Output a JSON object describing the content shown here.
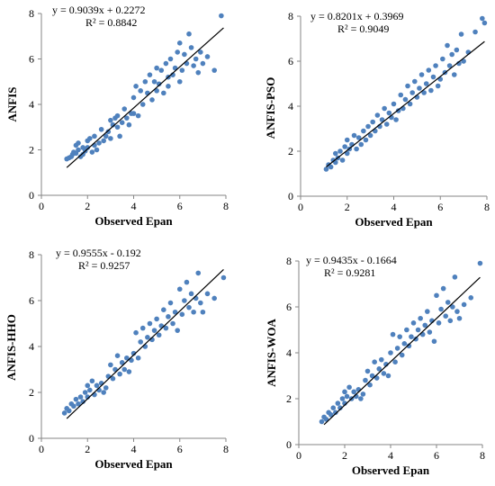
{
  "chart_data": [
    {
      "type": "scatter",
      "xlabel": "Observed Epan",
      "ylabel": "ANFIS",
      "xlim": [
        0,
        8
      ],
      "ylim": [
        0,
        8
      ],
      "xticks": [
        "0",
        "2",
        "4",
        "6",
        "8"
      ],
      "yticks": [
        "0",
        "2",
        "4",
        "6",
        "8"
      ],
      "equation": "y = 0.9039x + 0.2272",
      "r2": "R² = 0.8842",
      "trendline": {
        "slope": 0.9039,
        "intercept": 0.2272,
        "x_range": [
          1.1,
          7.9
        ]
      },
      "marker_color": "#4f81bd",
      "line_color": "#000000",
      "points": [
        [
          1.1,
          1.6
        ],
        [
          1.2,
          1.65
        ],
        [
          1.3,
          1.7
        ],
        [
          1.35,
          1.8
        ],
        [
          1.4,
          1.9
        ],
        [
          1.5,
          1.85
        ],
        [
          1.5,
          2.2
        ],
        [
          1.6,
          2.0
        ],
        [
          1.6,
          2.3
        ],
        [
          1.7,
          1.7
        ],
        [
          1.8,
          1.8
        ],
        [
          1.8,
          2.1
        ],
        [
          1.9,
          1.95
        ],
        [
          2.0,
          2.1
        ],
        [
          2.0,
          2.4
        ],
        [
          2.1,
          2.5
        ],
        [
          2.2,
          1.9
        ],
        [
          2.3,
          2.2
        ],
        [
          2.3,
          2.6
        ],
        [
          2.4,
          2.0
        ],
        [
          2.5,
          2.3
        ],
        [
          2.6,
          2.9
        ],
        [
          2.7,
          2.4
        ],
        [
          2.8,
          2.6
        ],
        [
          2.9,
          2.8
        ],
        [
          3.0,
          2.5
        ],
        [
          3.0,
          3.3
        ],
        [
          3.1,
          3.1
        ],
        [
          3.2,
          3.4
        ],
        [
          3.3,
          3.0
        ],
        [
          3.3,
          3.5
        ],
        [
          3.4,
          2.6
        ],
        [
          3.5,
          3.2
        ],
        [
          3.6,
          3.8
        ],
        [
          3.7,
          3.4
        ],
        [
          3.8,
          3.1
        ],
        [
          3.9,
          3.6
        ],
        [
          4.0,
          4.3
        ],
        [
          4.0,
          3.6
        ],
        [
          4.1,
          4.8
        ],
        [
          4.2,
          3.5
        ],
        [
          4.3,
          4.6
        ],
        [
          4.4,
          4.0
        ],
        [
          4.5,
          5.0
        ],
        [
          4.6,
          4.5
        ],
        [
          4.7,
          5.3
        ],
        [
          4.8,
          4.2
        ],
        [
          4.9,
          5.0
        ],
        [
          5.0,
          5.6
        ],
        [
          5.0,
          4.6
        ],
        [
          5.1,
          4.9
        ],
        [
          5.2,
          5.5
        ],
        [
          5.3,
          4.5
        ],
        [
          5.4,
          5.8
        ],
        [
          5.5,
          5.2
        ],
        [
          5.5,
          4.8
        ],
        [
          5.6,
          6.0
        ],
        [
          5.7,
          5.3
        ],
        [
          5.8,
          5.6
        ],
        [
          5.9,
          6.3
        ],
        [
          6.0,
          5.0
        ],
        [
          6.0,
          6.7
        ],
        [
          6.1,
          5.5
        ],
        [
          6.2,
          6.2
        ],
        [
          6.3,
          5.8
        ],
        [
          6.4,
          7.1
        ],
        [
          6.5,
          6.5
        ],
        [
          6.6,
          5.7
        ],
        [
          6.7,
          6.0
        ],
        [
          6.8,
          5.4
        ],
        [
          6.9,
          6.3
        ],
        [
          7.0,
          5.8
        ],
        [
          7.2,
          6.1
        ],
        [
          7.5,
          5.5
        ],
        [
          7.8,
          7.9
        ]
      ]
    },
    {
      "type": "scatter",
      "xlabel": "Observed Epan",
      "ylabel": "ANFIS-PSO",
      "xlim": [
        0,
        8
      ],
      "ylim": [
        0,
        8
      ],
      "xticks": [
        "0",
        "2",
        "4",
        "6",
        "8"
      ],
      "yticks": [
        "0",
        "2",
        "4",
        "6",
        "8"
      ],
      "equation": "y = 0.8201x + 0.3969",
      "r2": "R² = 0.9049",
      "trendline": {
        "slope": 0.8201,
        "intercept": 0.3969,
        "x_range": [
          1.1,
          7.9
        ]
      },
      "marker_color": "#4f81bd",
      "line_color": "#000000",
      "points": [
        [
          1.1,
          1.2
        ],
        [
          1.2,
          1.4
        ],
        [
          1.3,
          1.3
        ],
        [
          1.4,
          1.6
        ],
        [
          1.5,
          1.5
        ],
        [
          1.5,
          1.9
        ],
        [
          1.6,
          1.7
        ],
        [
          1.7,
          2.0
        ],
        [
          1.8,
          1.6
        ],
        [
          1.9,
          2.2
        ],
        [
          2.0,
          1.9
        ],
        [
          2.0,
          2.5
        ],
        [
          2.1,
          2.1
        ],
        [
          2.2,
          2.3
        ],
        [
          2.3,
          2.7
        ],
        [
          2.4,
          2.1
        ],
        [
          2.5,
          2.6
        ],
        [
          2.6,
          2.3
        ],
        [
          2.7,
          2.9
        ],
        [
          2.8,
          2.5
        ],
        [
          2.9,
          3.1
        ],
        [
          3.0,
          2.7
        ],
        [
          3.1,
          3.3
        ],
        [
          3.2,
          2.9
        ],
        [
          3.3,
          3.6
        ],
        [
          3.4,
          3.1
        ],
        [
          3.5,
          3.4
        ],
        [
          3.6,
          3.9
        ],
        [
          3.7,
          3.2
        ],
        [
          3.8,
          3.7
        ],
        [
          3.9,
          3.5
        ],
        [
          4.0,
          4.1
        ],
        [
          4.1,
          3.4
        ],
        [
          4.2,
          3.8
        ],
        [
          4.3,
          4.5
        ],
        [
          4.4,
          3.9
        ],
        [
          4.5,
          4.3
        ],
        [
          4.6,
          4.9
        ],
        [
          4.7,
          4.1
        ],
        [
          4.8,
          4.6
        ],
        [
          4.9,
          5.1
        ],
        [
          5.0,
          4.4
        ],
        [
          5.1,
          4.8
        ],
        [
          5.2,
          5.4
        ],
        [
          5.3,
          4.6
        ],
        [
          5.4,
          5.0
        ],
        [
          5.5,
          5.6
        ],
        [
          5.6,
          4.7
        ],
        [
          5.7,
          5.3
        ],
        [
          5.8,
          5.8
        ],
        [
          5.9,
          4.9
        ],
        [
          6.0,
          5.2
        ],
        [
          6.1,
          6.1
        ],
        [
          6.2,
          5.5
        ],
        [
          6.3,
          6.7
        ],
        [
          6.4,
          5.8
        ],
        [
          6.5,
          6.3
        ],
        [
          6.6,
          5.4
        ],
        [
          6.7,
          6.5
        ],
        [
          6.8,
          5.9
        ],
        [
          6.9,
          7.2
        ],
        [
          7.0,
          6.0
        ],
        [
          7.2,
          6.4
        ],
        [
          7.5,
          7.3
        ],
        [
          7.8,
          7.9
        ],
        [
          7.9,
          7.7
        ]
      ]
    },
    {
      "type": "scatter",
      "xlabel": "Observed Epan",
      "ylabel": "ANFIS-HHO",
      "xlim": [
        0,
        8
      ],
      "ylim": [
        0,
        8
      ],
      "xticks": [
        "0",
        "2",
        "4",
        "6",
        "8"
      ],
      "yticks": [
        "0",
        "2",
        "4",
        "6",
        "8"
      ],
      "equation": "y = 0.9555x - 0.192",
      "r2": "R² = 0.9257",
      "trendline": {
        "slope": 0.9555,
        "intercept": -0.192,
        "x_range": [
          1.1,
          7.9
        ]
      },
      "marker_color": "#4f81bd",
      "line_color": "#000000",
      "points": [
        [
          1.0,
          1.1
        ],
        [
          1.1,
          1.3
        ],
        [
          1.2,
          1.2
        ],
        [
          1.3,
          1.5
        ],
        [
          1.4,
          1.4
        ],
        [
          1.5,
          1.7
        ],
        [
          1.6,
          1.5
        ],
        [
          1.7,
          1.8
        ],
        [
          1.8,
          1.6
        ],
        [
          1.9,
          2.0
        ],
        [
          2.0,
          1.8
        ],
        [
          2.0,
          2.3
        ],
        [
          2.1,
          2.1
        ],
        [
          2.2,
          2.5
        ],
        [
          2.3,
          1.9
        ],
        [
          2.4,
          2.3
        ],
        [
          2.5,
          2.1
        ],
        [
          2.6,
          2.4
        ],
        [
          2.7,
          2.0
        ],
        [
          2.8,
          2.2
        ],
        [
          2.9,
          2.7
        ],
        [
          3.0,
          3.2
        ],
        [
          3.1,
          2.6
        ],
        [
          3.2,
          3.0
        ],
        [
          3.3,
          3.6
        ],
        [
          3.4,
          2.8
        ],
        [
          3.5,
          3.3
        ],
        [
          3.6,
          3.0
        ],
        [
          3.7,
          3.5
        ],
        [
          3.8,
          2.9
        ],
        [
          3.9,
          3.4
        ],
        [
          4.0,
          3.7
        ],
        [
          4.1,
          4.6
        ],
        [
          4.2,
          3.5
        ],
        [
          4.3,
          4.2
        ],
        [
          4.4,
          4.8
        ],
        [
          4.5,
          4.0
        ],
        [
          4.6,
          4.4
        ],
        [
          4.7,
          5.0
        ],
        [
          4.8,
          4.3
        ],
        [
          4.9,
          4.7
        ],
        [
          5.0,
          5.2
        ],
        [
          5.1,
          4.5
        ],
        [
          5.2,
          4.9
        ],
        [
          5.3,
          5.6
        ],
        [
          5.4,
          4.8
        ],
        [
          5.5,
          5.3
        ],
        [
          5.6,
          5.9
        ],
        [
          5.7,
          5.0
        ],
        [
          5.8,
          5.5
        ],
        [
          5.9,
          4.7
        ],
        [
          6.0,
          6.5
        ],
        [
          6.1,
          5.4
        ],
        [
          6.2,
          6.0
        ],
        [
          6.3,
          6.8
        ],
        [
          6.4,
          5.7
        ],
        [
          6.5,
          6.3
        ],
        [
          6.6,
          5.5
        ],
        [
          6.7,
          6.1
        ],
        [
          6.8,
          7.2
        ],
        [
          6.9,
          5.9
        ],
        [
          7.0,
          5.5
        ],
        [
          7.2,
          6.3
        ],
        [
          7.5,
          6.1
        ],
        [
          7.9,
          7.0
        ]
      ]
    },
    {
      "type": "scatter",
      "xlabel": "Observed Epan",
      "ylabel": "ANFIS-WOA",
      "xlim": [
        0,
        8
      ],
      "ylim": [
        0,
        8
      ],
      "xticks": [
        "0",
        "2",
        "4",
        "6",
        "8"
      ],
      "yticks": [
        "0",
        "2",
        "4",
        "6",
        "8"
      ],
      "equation": "y = 0.9435x - 0.1664",
      "r2": "R² = 0.9281",
      "trendline": {
        "slope": 0.9435,
        "intercept": -0.1664,
        "x_range": [
          1.1,
          7.9
        ]
      },
      "marker_color": "#4f81bd",
      "line_color": "#000000",
      "points": [
        [
          1.0,
          1.0
        ],
        [
          1.1,
          1.2
        ],
        [
          1.2,
          1.1
        ],
        [
          1.3,
          1.4
        ],
        [
          1.4,
          1.3
        ],
        [
          1.5,
          1.6
        ],
        [
          1.6,
          1.4
        ],
        [
          1.7,
          1.8
        ],
        [
          1.8,
          1.6
        ],
        [
          1.9,
          2.0
        ],
        [
          2.0,
          1.8
        ],
        [
          2.0,
          2.3
        ],
        [
          2.1,
          2.1
        ],
        [
          2.2,
          2.5
        ],
        [
          2.3,
          2.0
        ],
        [
          2.4,
          2.3
        ],
        [
          2.5,
          2.1
        ],
        [
          2.6,
          2.4
        ],
        [
          2.7,
          2.0
        ],
        [
          2.8,
          2.2
        ],
        [
          2.9,
          2.8
        ],
        [
          3.0,
          3.2
        ],
        [
          3.1,
          2.6
        ],
        [
          3.2,
          3.0
        ],
        [
          3.3,
          3.6
        ],
        [
          3.4,
          2.9
        ],
        [
          3.5,
          3.3
        ],
        [
          3.6,
          3.7
        ],
        [
          3.7,
          3.1
        ],
        [
          3.8,
          3.5
        ],
        [
          3.9,
          3.0
        ],
        [
          4.0,
          4.0
        ],
        [
          4.1,
          4.8
        ],
        [
          4.2,
          3.6
        ],
        [
          4.3,
          4.2
        ],
        [
          4.4,
          4.7
        ],
        [
          4.5,
          3.9
        ],
        [
          4.6,
          4.4
        ],
        [
          4.7,
          5.0
        ],
        [
          4.8,
          4.3
        ],
        [
          4.9,
          4.7
        ],
        [
          5.0,
          5.3
        ],
        [
          5.1,
          4.6
        ],
        [
          5.2,
          5.0
        ],
        [
          5.3,
          5.5
        ],
        [
          5.4,
          4.8
        ],
        [
          5.5,
          5.2
        ],
        [
          5.6,
          5.8
        ],
        [
          5.7,
          4.9
        ],
        [
          5.8,
          5.4
        ],
        [
          5.9,
          4.5
        ],
        [
          6.0,
          6.5
        ],
        [
          6.1,
          5.3
        ],
        [
          6.2,
          5.9
        ],
        [
          6.3,
          6.8
        ],
        [
          6.4,
          5.6
        ],
        [
          6.5,
          6.2
        ],
        [
          6.6,
          5.4
        ],
        [
          6.7,
          6.0
        ],
        [
          6.8,
          7.3
        ],
        [
          6.9,
          5.8
        ],
        [
          7.0,
          5.5
        ],
        [
          7.2,
          6.1
        ],
        [
          7.5,
          6.4
        ],
        [
          7.9,
          7.9
        ]
      ]
    }
  ]
}
